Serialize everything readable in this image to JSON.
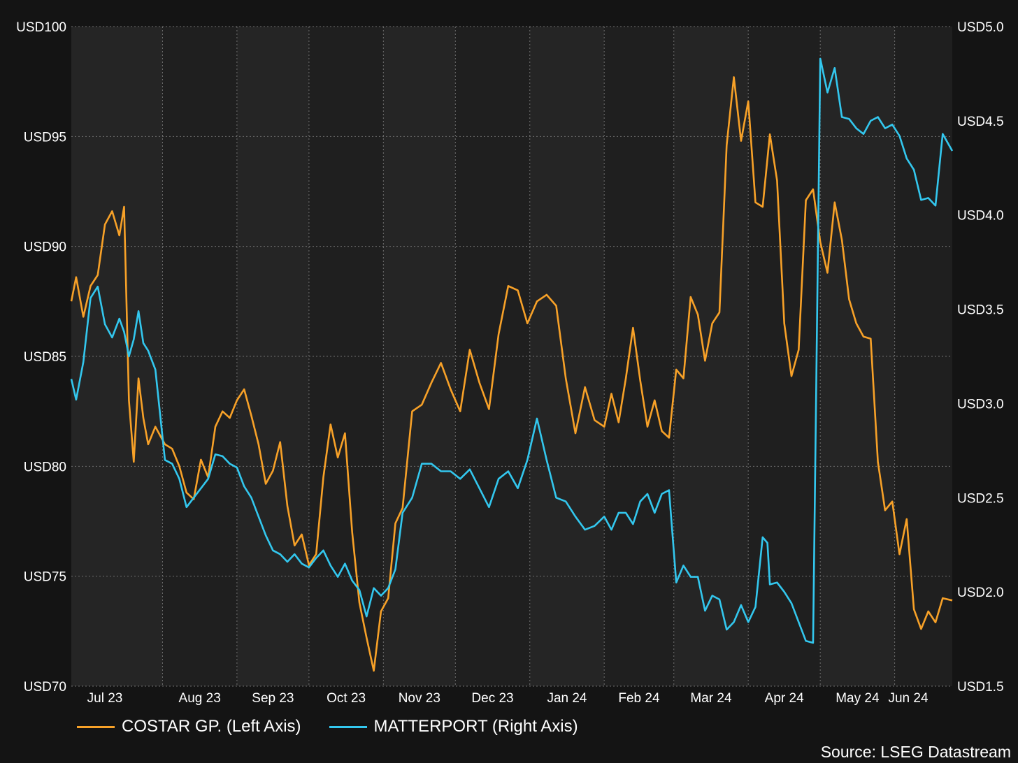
{
  "chart_data": {
    "type": "line",
    "title": "",
    "x_labels": [
      "Jul 23",
      "Aug 23",
      "Sep 23",
      "Oct 23",
      "Nov 23",
      "Dec 23",
      "Jan 24",
      "Feb 24",
      "Mar 24",
      "Apr 24",
      "May 24",
      "Jun 24"
    ],
    "left_axis": {
      "ticks": [
        "USD70",
        "USD75",
        "USD80",
        "USD85",
        "USD90",
        "USD95",
        "USD100"
      ],
      "range": [
        70,
        100
      ]
    },
    "right_axis": {
      "ticks": [
        "USD1.5",
        "USD2.0",
        "USD2.5",
        "USD3.0",
        "USD3.5",
        "USD4.0",
        "USD4.5",
        "USD5.0"
      ],
      "range": [
        1.5,
        5.0
      ]
    },
    "grid": true,
    "legend_position": "bottom-left",
    "series": [
      {
        "name": "COSTAR GP. (Left Axis)",
        "axis": "left",
        "color": "#F7A128",
        "x": [
          "2023-06-23",
          "2023-06-25",
          "2023-06-28",
          "2023-07-01",
          "2023-07-04",
          "2023-07-07",
          "2023-07-10",
          "2023-07-13",
          "2023-07-15",
          "2023-07-17",
          "2023-07-19",
          "2023-07-21",
          "2023-07-23",
          "2023-07-25",
          "2023-07-28",
          "2023-08-01",
          "2023-08-04",
          "2023-08-07",
          "2023-08-10",
          "2023-08-13",
          "2023-08-16",
          "2023-08-19",
          "2023-08-22",
          "2023-08-25",
          "2023-08-28",
          "2023-08-31",
          "2023-09-03",
          "2023-09-06",
          "2023-09-09",
          "2023-09-12",
          "2023-09-15",
          "2023-09-18",
          "2023-09-21",
          "2023-09-24",
          "2023-09-27",
          "2023-09-30",
          "2023-10-03",
          "2023-10-06",
          "2023-10-09",
          "2023-10-12",
          "2023-10-15",
          "2023-10-18",
          "2023-10-21",
          "2023-10-24",
          "2023-10-27",
          "2023-10-30",
          "2023-11-02",
          "2023-11-05",
          "2023-11-08",
          "2023-11-12",
          "2023-11-16",
          "2023-11-20",
          "2023-11-24",
          "2023-11-28",
          "2023-12-02",
          "2023-12-06",
          "2023-12-10",
          "2023-12-14",
          "2023-12-18",
          "2023-12-22",
          "2023-12-26",
          "2023-12-30",
          "2024-01-03",
          "2024-01-07",
          "2024-01-11",
          "2024-01-15",
          "2024-01-19",
          "2024-01-23",
          "2024-01-27",
          "2024-01-31",
          "2024-02-03",
          "2024-02-06",
          "2024-02-09",
          "2024-02-12",
          "2024-02-15",
          "2024-02-18",
          "2024-02-21",
          "2024-02-24",
          "2024-02-27",
          "2024-03-01",
          "2024-03-04",
          "2024-03-07",
          "2024-03-10",
          "2024-03-13",
          "2024-03-16",
          "2024-03-19",
          "2024-03-22",
          "2024-03-25",
          "2024-03-28",
          "2024-03-31",
          "2024-04-03",
          "2024-04-06",
          "2024-04-09",
          "2024-04-12",
          "2024-04-15",
          "2024-04-18",
          "2024-04-21",
          "2024-04-24",
          "2024-04-27",
          "2024-04-30",
          "2024-05-03",
          "2024-05-06",
          "2024-05-09",
          "2024-05-12",
          "2024-05-15",
          "2024-05-18",
          "2024-05-21",
          "2024-05-24",
          "2024-05-27",
          "2024-05-30",
          "2024-06-02",
          "2024-06-05",
          "2024-06-08",
          "2024-06-11",
          "2024-06-14",
          "2024-06-17",
          "2024-06-20",
          "2024-06-24"
        ],
        "values": [
          87.5,
          88.6,
          86.8,
          88.2,
          88.7,
          91.0,
          91.6,
          90.5,
          91.8,
          83.0,
          80.2,
          84.0,
          82.2,
          81.0,
          81.8,
          81.0,
          80.8,
          80.0,
          78.8,
          78.5,
          80.3,
          79.5,
          81.8,
          82.5,
          82.2,
          83.0,
          83.5,
          82.3,
          81.0,
          79.2,
          79.8,
          81.1,
          78.2,
          76.4,
          76.9,
          75.5,
          76.0,
          79.5,
          81.9,
          80.4,
          81.5,
          77.0,
          73.8,
          72.2,
          70.7,
          73.4,
          74.0,
          77.4,
          78.1,
          82.5,
          82.8,
          83.8,
          84.7,
          83.5,
          82.5,
          85.3,
          83.8,
          82.6,
          86.0,
          88.2,
          88.0,
          86.5,
          87.5,
          87.8,
          87.3,
          84.0,
          81.5,
          83.6,
          82.1,
          81.8,
          83.3,
          82.0,
          84.0,
          86.3,
          83.9,
          81.8,
          83.0,
          81.6,
          81.3,
          84.4,
          84.0,
          87.7,
          86.9,
          84.8,
          86.5,
          87.0,
          94.6,
          97.7,
          94.8,
          96.6,
          92.0,
          91.8,
          95.1,
          93.0,
          86.5,
          84.1,
          85.3,
          92.1,
          92.6,
          90.2,
          88.8,
          92.0,
          90.3,
          87.6,
          86.5,
          85.9,
          85.8,
          80.2,
          78.0,
          78.4,
          76.0,
          77.6,
          73.5,
          72.6,
          73.4,
          72.9,
          74.0,
          73.9
        ]
      },
      {
        "name": "MATTERPORT (Right Axis)",
        "axis": "right",
        "color": "#33C7EE",
        "x": [
          "2023-06-23",
          "2023-06-25",
          "2023-06-28",
          "2023-07-01",
          "2023-07-04",
          "2023-07-07",
          "2023-07-10",
          "2023-07-13",
          "2023-07-15",
          "2023-07-17",
          "2023-07-19",
          "2023-07-21",
          "2023-07-23",
          "2023-07-25",
          "2023-07-28",
          "2023-08-01",
          "2023-08-04",
          "2023-08-07",
          "2023-08-10",
          "2023-08-13",
          "2023-08-16",
          "2023-08-19",
          "2023-08-22",
          "2023-08-25",
          "2023-08-28",
          "2023-08-31",
          "2023-09-03",
          "2023-09-06",
          "2023-09-09",
          "2023-09-12",
          "2023-09-15",
          "2023-09-18",
          "2023-09-21",
          "2023-09-24",
          "2023-09-27",
          "2023-09-30",
          "2023-10-03",
          "2023-10-06",
          "2023-10-09",
          "2023-10-12",
          "2023-10-15",
          "2023-10-18",
          "2023-10-21",
          "2023-10-24",
          "2023-10-27",
          "2023-10-30",
          "2023-11-02",
          "2023-11-05",
          "2023-11-08",
          "2023-11-12",
          "2023-11-16",
          "2023-11-20",
          "2023-11-24",
          "2023-11-28",
          "2023-12-02",
          "2023-12-06",
          "2023-12-10",
          "2023-12-14",
          "2023-12-18",
          "2023-12-22",
          "2023-12-26",
          "2023-12-30",
          "2024-01-03",
          "2024-01-07",
          "2024-01-11",
          "2024-01-15",
          "2024-01-19",
          "2024-01-23",
          "2024-01-27",
          "2024-01-31",
          "2024-02-03",
          "2024-02-06",
          "2024-02-09",
          "2024-02-12",
          "2024-02-15",
          "2024-02-18",
          "2024-02-21",
          "2024-02-24",
          "2024-02-27",
          "2024-03-01",
          "2024-03-04",
          "2024-03-07",
          "2024-03-10",
          "2024-03-13",
          "2024-03-16",
          "2024-03-19",
          "2024-03-22",
          "2024-03-25",
          "2024-03-28",
          "2024-03-31",
          "2024-04-03",
          "2024-04-06",
          "2024-04-08",
          "2024-04-09",
          "2024-04-12",
          "2024-04-15",
          "2024-04-18",
          "2024-04-21",
          "2024-04-24",
          "2024-04-27",
          "2024-04-30",
          "2024-05-03",
          "2024-05-06",
          "2024-05-09",
          "2024-05-12",
          "2024-05-15",
          "2024-05-18",
          "2024-05-21",
          "2024-05-24",
          "2024-05-27",
          "2024-05-30",
          "2024-06-02",
          "2024-06-05",
          "2024-06-08",
          "2024-06-11",
          "2024-06-14",
          "2024-06-17",
          "2024-06-20",
          "2024-06-24"
        ],
        "values": [
          3.13,
          3.02,
          3.22,
          3.56,
          3.62,
          3.42,
          3.35,
          3.45,
          3.38,
          3.25,
          3.34,
          3.49,
          3.32,
          3.28,
          3.18,
          2.7,
          2.68,
          2.6,
          2.45,
          2.5,
          2.55,
          2.6,
          2.73,
          2.72,
          2.68,
          2.66,
          2.56,
          2.5,
          2.4,
          2.3,
          2.22,
          2.2,
          2.16,
          2.2,
          2.15,
          2.13,
          2.18,
          2.22,
          2.14,
          2.08,
          2.15,
          2.06,
          2.01,
          1.87,
          2.02,
          1.98,
          2.02,
          2.12,
          2.42,
          2.5,
          2.68,
          2.68,
          2.64,
          2.64,
          2.6,
          2.65,
          2.55,
          2.45,
          2.6,
          2.64,
          2.55,
          2.7,
          2.92,
          2.7,
          2.5,
          2.48,
          2.4,
          2.33,
          2.35,
          2.4,
          2.33,
          2.42,
          2.42,
          2.36,
          2.48,
          2.52,
          2.42,
          2.52,
          2.54,
          2.05,
          2.14,
          2.08,
          2.08,
          1.9,
          1.98,
          1.96,
          1.8,
          1.84,
          1.93,
          1.84,
          1.92,
          2.29,
          2.26,
          2.04,
          2.05,
          2.0,
          1.94,
          1.84,
          1.74,
          1.73,
          4.83,
          4.65,
          4.78,
          4.52,
          4.51,
          4.46,
          4.43,
          4.5,
          4.52,
          4.46,
          4.48,
          4.42,
          4.3,
          4.24,
          4.08,
          4.09,
          4.05,
          4.43,
          4.34
        ]
      }
    ]
  },
  "legend": {
    "costar": "COSTAR GP. (Left Axis)",
    "matterport": "MATTERPORT (Right Axis)"
  },
  "source": "Source: LSEG Datastream",
  "colors": {
    "background": "#141414",
    "plot_band_dark": "#1f1f1f",
    "plot_band_light": "#252525",
    "grid": "#707070"
  }
}
